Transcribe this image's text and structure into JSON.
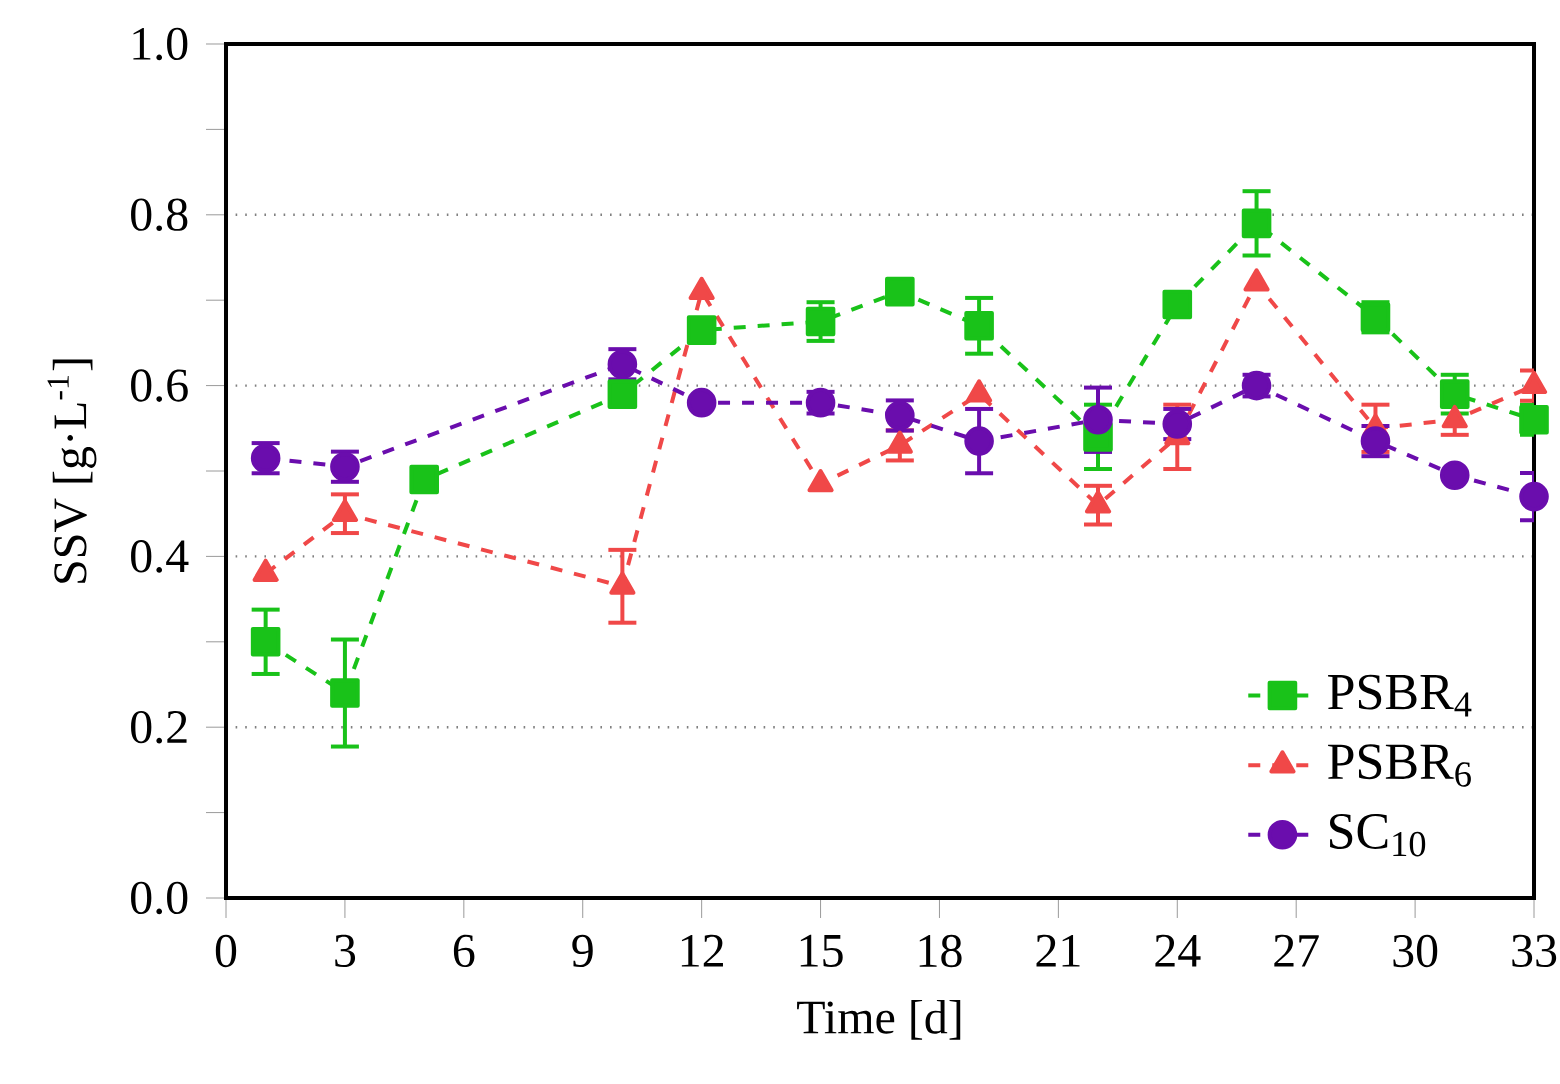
{
  "chart_data": {
    "type": "line",
    "xlabel": "Time [d]",
    "ylabel": "SSV [g·L$^{-1}$]",
    "xlim": [
      0,
      33
    ],
    "xticks": [
      0,
      3,
      6,
      9,
      12,
      15,
      18,
      21,
      24,
      27,
      30,
      33
    ],
    "ylim": [
      0,
      1.0
    ],
    "yticks": [
      {
        "value": 0,
        "label": "0.0"
      },
      {
        "value": 0.1,
        "label": null
      },
      {
        "value": 0.2,
        "label": "0.2"
      },
      {
        "value": 0.3,
        "label": null
      },
      {
        "value": 0.4,
        "label": "0.4"
      },
      {
        "value": 0.5,
        "label": null
      },
      {
        "value": 0.6,
        "label": "0.6"
      },
      {
        "value": 0.7,
        "label": null
      },
      {
        "value": 0.8,
        "label": "0.8"
      },
      {
        "value": 0.9,
        "label": null
      },
      {
        "value": 1.0,
        "label": "1.0"
      }
    ],
    "grid": "y",
    "legend": "bottom right",
    "line_style": "dashed",
    "series": [
      {
        "name": "PSBR$_{4}$",
        "color": "#19c219",
        "marker": "square",
        "x": [
          1,
          3,
          5,
          10,
          12,
          15,
          17,
          19,
          22,
          24,
          26,
          29,
          31,
          33
        ],
        "values": [
          0.3,
          0.24,
          0.49,
          0.59,
          0.665,
          0.675,
          0.71,
          0.67,
          0.54,
          0.695,
          0.79,
          0.68,
          0.59,
          0.56
        ],
        "errors": [
          0.04,
          0.065,
          null,
          null,
          null,
          0.025,
          null,
          0.035,
          0.04,
          null,
          0.04,
          0.02,
          0.025,
          0.02
        ]
      },
      {
        "name": "PSBR$_{6}$",
        "color": "#f04848",
        "marker": "triangle",
        "x": [
          1,
          3,
          10,
          12,
          15,
          17,
          19,
          22,
          24,
          26,
          29,
          31,
          33
        ],
        "values": [
          0.38,
          0.45,
          0.365,
          0.71,
          0.485,
          0.53,
          0.59,
          0.46,
          0.54,
          0.72,
          0.55,
          0.56,
          0.6
        ],
        "errors": [
          null,
          0.025,
          0.045,
          null,
          null,
          0.02,
          null,
          0.025,
          0.04,
          null,
          0.03,
          0.02,
          0.02
        ]
      },
      {
        "name": "SC$_{10}$",
        "color": "#6a0dad",
        "marker": "circle",
        "x": [
          1,
          3,
          10,
          12,
          15,
          17,
          19,
          22,
          24,
          26,
          29,
          31,
          33
        ],
        "values": [
          0.515,
          0.505,
          0.625,
          0.58,
          0.58,
          0.565,
          0.535,
          0.56,
          0.555,
          0.6,
          0.535,
          0.495,
          0.47
        ],
        "errors": [
          0.02,
          0.02,
          0.02,
          null,
          0.015,
          0.02,
          0.04,
          0.04,
          0.02,
          0.015,
          0.02,
          null,
          0.03
        ]
      }
    ]
  }
}
